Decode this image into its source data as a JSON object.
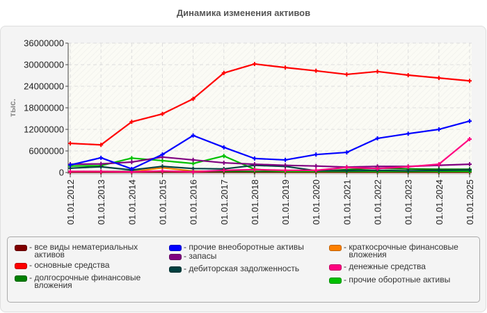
{
  "title": "Динамика изменения активов",
  "chart_data": {
    "type": "line",
    "title": "Динамика изменения активов",
    "xlabel": "",
    "ylabel": "тыс.",
    "ylim": [
      0,
      36000000
    ],
    "yticks": [
      0,
      6000000,
      12000000,
      18000000,
      24000000,
      30000000,
      36000000
    ],
    "ytick_labels": [
      "0",
      "6000000",
      "12000000",
      "18000000",
      "24000000",
      "30000000",
      "36000000"
    ],
    "grid": true,
    "legend_position": "bottom",
    "categories": [
      "01.01.2012",
      "01.01.2013",
      "01.01.2014",
      "01.01.2015",
      "01.01.2016",
      "01.01.2017",
      "01.01.2018",
      "01.01.2019",
      "01.01.2020",
      "01.01.2021",
      "01.01.2022",
      "01.01.2023",
      "01.01.2024",
      "01.01.2025"
    ],
    "series": [
      {
        "name": "все виды нематериальных активов",
        "color": "#800000",
        "values": [
          100000,
          100000,
          100000,
          100000,
          100000,
          100000,
          100000,
          100000,
          100000,
          100000,
          100000,
          100000,
          100000,
          100000
        ]
      },
      {
        "name": "основные средства",
        "color": "#ff0000",
        "values": [
          8100000,
          7700000,
          14100000,
          16300000,
          20500000,
          27700000,
          30200000,
          29200000,
          28300000,
          27300000,
          28100000,
          27100000,
          26300000,
          25500000
        ]
      },
      {
        "name": "долгосрочные финансовые вложения",
        "color": "#008000",
        "values": [
          300000,
          300000,
          300000,
          300000,
          300000,
          300000,
          300000,
          300000,
          300000,
          800000,
          1200000,
          1000000,
          900000,
          900000
        ]
      },
      {
        "name": "прочие внеоборотные активы",
        "color": "#0000ff",
        "values": [
          2100000,
          4100000,
          1000000,
          5000000,
          10300000,
          7000000,
          3900000,
          3500000,
          5000000,
          5600000,
          9500000,
          10800000,
          12000000,
          14300000
        ]
      },
      {
        "name": "запасы",
        "color": "#800080",
        "values": [
          2300000,
          2400000,
          2900000,
          4300000,
          3500000,
          2700000,
          2300000,
          2000000,
          1800000,
          1500000,
          1700000,
          1700000,
          2000000,
          2300000
        ]
      },
      {
        "name": "дебиторская задолженность",
        "color": "#004040",
        "values": [
          1200000,
          1600000,
          700000,
          1700000,
          1100000,
          1000000,
          2000000,
          1700000,
          500000,
          500000,
          600000,
          500000,
          600000,
          700000
        ]
      },
      {
        "name": "краткосрочные финансовые вложения",
        "color": "#ff8000",
        "values": [
          200000,
          200000,
          200000,
          1300000,
          400000,
          300000,
          200000,
          100000,
          100000,
          100000,
          100000,
          100000,
          100000,
          100000
        ]
      },
      {
        "name": "денежные средства",
        "color": "#ff0080",
        "values": [
          300000,
          300000,
          200000,
          400000,
          200000,
          600000,
          800000,
          600000,
          600000,
          1400000,
          1100000,
          1600000,
          2300000,
          9300000
        ]
      },
      {
        "name": "прочие оборотные активы",
        "color": "#00c000",
        "values": [
          1800000,
          1900000,
          4000000,
          3300000,
          2500000,
          4600000,
          900000,
          300000,
          300000,
          300000,
          300000,
          300000,
          300000,
          300000
        ]
      }
    ]
  },
  "legend": {
    "items": [
      {
        "label": "все виды нематериальных\nактивов",
        "color": "#800000"
      },
      {
        "label": "основные средства",
        "color": "#ff0000"
      },
      {
        "label": "долгосрочные финансовые\nвложения",
        "color": "#008000"
      },
      {
        "label": "прочие внеоборотные активы",
        "color": "#0000ff"
      },
      {
        "label": "запасы",
        "color": "#800080"
      },
      {
        "label": "дебиторская задолженность",
        "color": "#004040"
      },
      {
        "label": "краткосрочные финансовые\nвложения",
        "color": "#ff8000"
      },
      {
        "label": "денежные средства",
        "color": "#ff0080"
      },
      {
        "label": "прочие оборотные активы",
        "color": "#00c000"
      }
    ]
  }
}
